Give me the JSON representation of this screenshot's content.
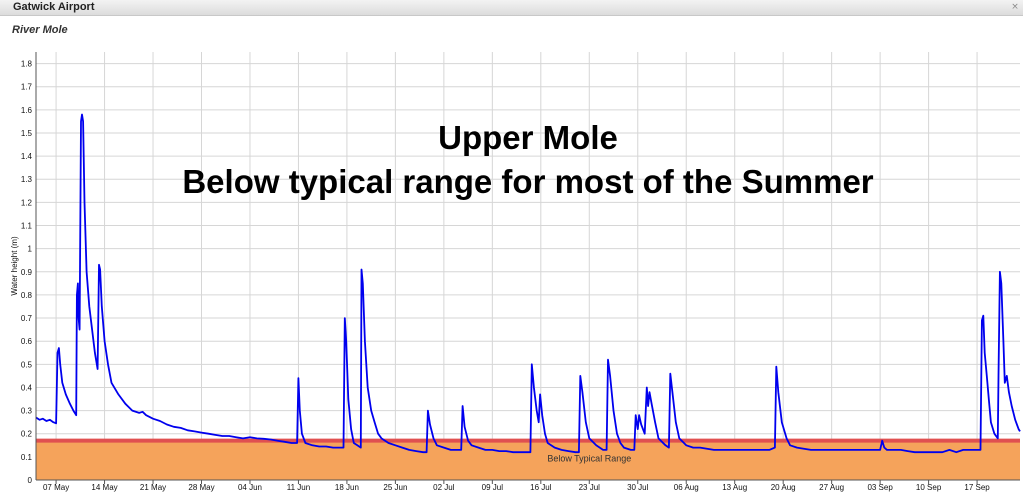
{
  "window": {
    "title": "Gatwick Airport",
    "close_label": "×"
  },
  "chart_data": {
    "type": "line",
    "title": "",
    "subtitle": "River Mole",
    "xlabel": "",
    "ylabel": "Water height (m)",
    "ylim": [
      0,
      1.85
    ],
    "grid": true,
    "y_ticks": [
      "0",
      "0.1",
      "0.2",
      "0.3",
      "0.4",
      "0.5",
      "0.6",
      "0.7",
      "0.8",
      "0.9",
      "1",
      "1.1",
      "1.2",
      "1.3",
      "1.4",
      "1.5",
      "1.6",
      "1.7",
      "1.8"
    ],
    "x_ticks": [
      {
        "label": "07 May",
        "day": 7
      },
      {
        "label": "14 May",
        "day": 14
      },
      {
        "label": "21 May",
        "day": 21
      },
      {
        "label": "28 May",
        "day": 28
      },
      {
        "label": "04 Jun",
        "day": 35
      },
      {
        "label": "11 Jun",
        "day": 42
      },
      {
        "label": "18 Jun",
        "day": 49
      },
      {
        "label": "25 Jun",
        "day": 56
      },
      {
        "label": "02 Jul",
        "day": 63
      },
      {
        "label": "09 Jul",
        "day": 70
      },
      {
        "label": "16 Jul",
        "day": 77
      },
      {
        "label": "23 Jul",
        "day": 84
      },
      {
        "label": "30 Jul",
        "day": 91
      },
      {
        "label": "06 Aug",
        "day": 98
      },
      {
        "label": "13 Aug",
        "day": 105
      },
      {
        "label": "20 Aug",
        "day": 112
      },
      {
        "label": "27 Aug",
        "day": 119
      },
      {
        "label": "03 Sep",
        "day": 126
      },
      {
        "label": "10 Sep",
        "day": 133
      },
      {
        "label": "17 Sep",
        "day": 140
      }
    ],
    "x_range_days": [
      4.1,
      146.2
    ],
    "typical_range_lower": 0.17,
    "band_label": "Below Typical Range",
    "annotation": [
      "Upper Mole",
      "Below typical range for most of the Summer"
    ],
    "colors": {
      "line": "#0000ee",
      "band": "#f5a35b",
      "threshold": "#e05050",
      "grid": "#d6d6d6"
    },
    "series": [
      {
        "points": [
          [
            4.1,
            0.27
          ],
          [
            4.6,
            0.26
          ],
          [
            5.1,
            0.265
          ],
          [
            5.6,
            0.255
          ],
          [
            6.1,
            0.26
          ],
          [
            6.6,
            0.25
          ],
          [
            7.0,
            0.245
          ],
          [
            7.2,
            0.55
          ],
          [
            7.4,
            0.57
          ],
          [
            7.6,
            0.5
          ],
          [
            7.9,
            0.42
          ],
          [
            8.4,
            0.37
          ],
          [
            9.0,
            0.33
          ],
          [
            9.5,
            0.3
          ],
          [
            9.9,
            0.28
          ],
          [
            10.0,
            0.8
          ],
          [
            10.15,
            0.85
          ],
          [
            10.25,
            0.7
          ],
          [
            10.4,
            0.65
          ],
          [
            10.6,
            1.55
          ],
          [
            10.75,
            1.58
          ],
          [
            10.9,
            1.55
          ],
          [
            11.1,
            1.2
          ],
          [
            11.4,
            0.9
          ],
          [
            11.8,
            0.75
          ],
          [
            12.2,
            0.65
          ],
          [
            12.6,
            0.55
          ],
          [
            13.0,
            0.48
          ],
          [
            13.2,
            0.93
          ],
          [
            13.35,
            0.91
          ],
          [
            13.6,
            0.75
          ],
          [
            14.0,
            0.6
          ],
          [
            14.5,
            0.5
          ],
          [
            15.0,
            0.42
          ],
          [
            16.0,
            0.37
          ],
          [
            17.0,
            0.33
          ],
          [
            18.0,
            0.3
          ],
          [
            19.0,
            0.29
          ],
          [
            19.5,
            0.295
          ],
          [
            20.0,
            0.28
          ],
          [
            21.0,
            0.265
          ],
          [
            22.0,
            0.255
          ],
          [
            23.0,
            0.24
          ],
          [
            24.0,
            0.23
          ],
          [
            25.0,
            0.225
          ],
          [
            26.0,
            0.215
          ],
          [
            27.0,
            0.21
          ],
          [
            28.0,
            0.205
          ],
          [
            29.0,
            0.2
          ],
          [
            30.0,
            0.195
          ],
          [
            31.0,
            0.19
          ],
          [
            32.0,
            0.19
          ],
          [
            33.0,
            0.185
          ],
          [
            34.0,
            0.18
          ],
          [
            35.0,
            0.185
          ],
          [
            36.0,
            0.18
          ],
          [
            37.0,
            0.178
          ],
          [
            38.0,
            0.175
          ],
          [
            39.0,
            0.17
          ],
          [
            40.0,
            0.165
          ],
          [
            41.0,
            0.16
          ],
          [
            41.8,
            0.16
          ],
          [
            42.0,
            0.44
          ],
          [
            42.2,
            0.3
          ],
          [
            42.5,
            0.2
          ],
          [
            43.0,
            0.16
          ],
          [
            44.0,
            0.15
          ],
          [
            45.0,
            0.145
          ],
          [
            46.0,
            0.145
          ],
          [
            47.0,
            0.14
          ],
          [
            48.0,
            0.14
          ],
          [
            48.5,
            0.14
          ],
          [
            48.7,
            0.7
          ],
          [
            48.9,
            0.6
          ],
          [
            49.2,
            0.35
          ],
          [
            49.6,
            0.22
          ],
          [
            50.0,
            0.16
          ],
          [
            50.5,
            0.15
          ],
          [
            51.0,
            0.14
          ],
          [
            51.1,
            0.91
          ],
          [
            51.3,
            0.85
          ],
          [
            51.6,
            0.6
          ],
          [
            52.0,
            0.4
          ],
          [
            52.5,
            0.3
          ],
          [
            53.0,
            0.25
          ],
          [
            53.5,
            0.2
          ],
          [
            54.0,
            0.18
          ],
          [
            55.0,
            0.16
          ],
          [
            56.0,
            0.15
          ],
          [
            57.0,
            0.14
          ],
          [
            58.0,
            0.13
          ],
          [
            59.0,
            0.125
          ],
          [
            60.0,
            0.12
          ],
          [
            60.5,
            0.12
          ],
          [
            60.7,
            0.3
          ],
          [
            61.0,
            0.24
          ],
          [
            61.5,
            0.18
          ],
          [
            62.0,
            0.15
          ],
          [
            63.0,
            0.14
          ],
          [
            64.0,
            0.13
          ],
          [
            65.0,
            0.13
          ],
          [
            65.5,
            0.13
          ],
          [
            65.7,
            0.32
          ],
          [
            66.0,
            0.23
          ],
          [
            66.5,
            0.17
          ],
          [
            67.0,
            0.15
          ],
          [
            68.0,
            0.14
          ],
          [
            69.0,
            0.13
          ],
          [
            70.0,
            0.13
          ],
          [
            71.0,
            0.125
          ],
          [
            72.0,
            0.125
          ],
          [
            73.0,
            0.12
          ],
          [
            74.0,
            0.12
          ],
          [
            75.0,
            0.12
          ],
          [
            75.5,
            0.12
          ],
          [
            75.7,
            0.5
          ],
          [
            76.0,
            0.4
          ],
          [
            76.4,
            0.3
          ],
          [
            76.7,
            0.25
          ],
          [
            76.9,
            0.37
          ],
          [
            77.2,
            0.28
          ],
          [
            77.6,
            0.2
          ],
          [
            78.0,
            0.16
          ],
          [
            79.0,
            0.14
          ],
          [
            80.0,
            0.13
          ],
          [
            81.0,
            0.125
          ],
          [
            82.0,
            0.12
          ],
          [
            82.5,
            0.12
          ],
          [
            82.7,
            0.45
          ],
          [
            83.0,
            0.38
          ],
          [
            83.5,
            0.25
          ],
          [
            84.0,
            0.18
          ],
          [
            85.0,
            0.15
          ],
          [
            86.0,
            0.13
          ],
          [
            86.5,
            0.13
          ],
          [
            86.7,
            0.52
          ],
          [
            87.0,
            0.45
          ],
          [
            87.5,
            0.3
          ],
          [
            88.0,
            0.2
          ],
          [
            88.5,
            0.16
          ],
          [
            89.0,
            0.14
          ],
          [
            90.0,
            0.13
          ],
          [
            90.5,
            0.13
          ],
          [
            90.7,
            0.28
          ],
          [
            91.0,
            0.22
          ],
          [
            91.2,
            0.28
          ],
          [
            91.5,
            0.24
          ],
          [
            92.0,
            0.2
          ],
          [
            92.3,
            0.4
          ],
          [
            92.5,
            0.32
          ],
          [
            92.7,
            0.38
          ],
          [
            93.0,
            0.33
          ],
          [
            93.5,
            0.25
          ],
          [
            94.0,
            0.18
          ],
          [
            95.0,
            0.15
          ],
          [
            95.5,
            0.14
          ],
          [
            95.7,
            0.46
          ],
          [
            96.0,
            0.38
          ],
          [
            96.5,
            0.25
          ],
          [
            97.0,
            0.18
          ],
          [
            98.0,
            0.15
          ],
          [
            99.0,
            0.14
          ],
          [
            100.0,
            0.14
          ],
          [
            101.0,
            0.135
          ],
          [
            102.0,
            0.13
          ],
          [
            103.0,
            0.13
          ],
          [
            104.0,
            0.13
          ],
          [
            105.0,
            0.13
          ],
          [
            106.0,
            0.13
          ],
          [
            107.0,
            0.13
          ],
          [
            108.0,
            0.13
          ],
          [
            109.0,
            0.13
          ],
          [
            110.0,
            0.13
          ],
          [
            110.8,
            0.14
          ],
          [
            111.0,
            0.49
          ],
          [
            111.3,
            0.38
          ],
          [
            111.8,
            0.25
          ],
          [
            112.5,
            0.18
          ],
          [
            113.0,
            0.15
          ],
          [
            114.0,
            0.14
          ],
          [
            115.0,
            0.135
          ],
          [
            116.0,
            0.13
          ],
          [
            117.0,
            0.13
          ],
          [
            118.0,
            0.13
          ],
          [
            119.0,
            0.13
          ],
          [
            120.0,
            0.13
          ],
          [
            121.0,
            0.13
          ],
          [
            122.0,
            0.13
          ],
          [
            123.0,
            0.13
          ],
          [
            124.0,
            0.13
          ],
          [
            125.0,
            0.13
          ],
          [
            126.0,
            0.13
          ],
          [
            126.3,
            0.17
          ],
          [
            126.6,
            0.14
          ],
          [
            127.0,
            0.13
          ],
          [
            128.0,
            0.13
          ],
          [
            129.0,
            0.13
          ],
          [
            130.0,
            0.125
          ],
          [
            131.0,
            0.12
          ],
          [
            132.0,
            0.12
          ],
          [
            133.0,
            0.12
          ],
          [
            134.0,
            0.12
          ],
          [
            135.0,
            0.12
          ],
          [
            136.0,
            0.13
          ],
          [
            137.0,
            0.12
          ],
          [
            138.0,
            0.13
          ],
          [
            139.0,
            0.13
          ],
          [
            140.0,
            0.13
          ],
          [
            140.5,
            0.13
          ],
          [
            140.7,
            0.69
          ],
          [
            140.9,
            0.71
          ],
          [
            141.1,
            0.55
          ],
          [
            141.4,
            0.45
          ],
          [
            141.7,
            0.35
          ],
          [
            142.0,
            0.25
          ],
          [
            142.5,
            0.2
          ],
          [
            143.0,
            0.18
          ],
          [
            143.1,
            0.45
          ],
          [
            143.3,
            0.9
          ],
          [
            143.5,
            0.85
          ],
          [
            143.8,
            0.6
          ],
          [
            144.0,
            0.42
          ],
          [
            144.3,
            0.45
          ],
          [
            144.6,
            0.38
          ],
          [
            145.0,
            0.32
          ],
          [
            145.5,
            0.26
          ],
          [
            146.0,
            0.22
          ],
          [
            146.2,
            0.21
          ]
        ]
      }
    ]
  }
}
